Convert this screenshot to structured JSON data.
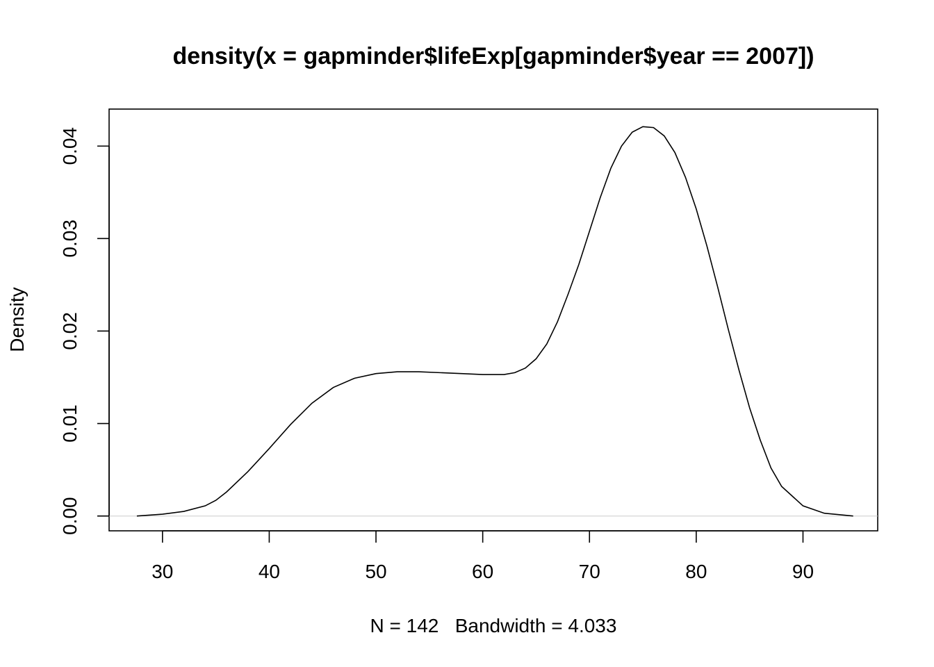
{
  "chart_data": {
    "type": "line",
    "title": "density(x = gapminder$lifeExp[gapminder$year == 2007])",
    "xlabel": "N = 142   Bandwidth = 4.033",
    "ylabel": "Density",
    "xlim": [
      25,
      97
    ],
    "ylim": [
      -0.0016,
      0.044
    ],
    "x_ticks": [
      30,
      40,
      50,
      60,
      70,
      80,
      90
    ],
    "y_ticks": [
      0.0,
      0.01,
      0.02,
      0.03,
      0.04
    ],
    "x_tick_labels": [
      "30",
      "40",
      "50",
      "60",
      "70",
      "80",
      "90"
    ],
    "y_tick_labels": [
      "0.00",
      "0.01",
      "0.02",
      "0.03",
      "0.04"
    ],
    "grid": false,
    "baseline": 0,
    "series": [
      {
        "x": [
          27.6,
          30,
          32,
          34,
          35,
          36,
          38,
          40,
          42,
          44,
          46,
          48,
          50,
          52,
          54,
          56,
          58,
          60,
          62,
          63,
          64,
          65,
          66,
          67,
          68,
          69,
          70,
          71,
          72,
          73,
          74,
          75,
          76,
          77,
          78,
          79,
          80,
          81,
          82,
          83,
          84,
          85,
          86,
          87,
          88,
          90,
          92,
          94.7
        ],
        "y": [
          0.0,
          0.0002,
          0.0005,
          0.0011,
          0.0017,
          0.0026,
          0.0048,
          0.0073,
          0.0099,
          0.0122,
          0.0139,
          0.0149,
          0.0154,
          0.0156,
          0.0156,
          0.0155,
          0.0154,
          0.0153,
          0.0153,
          0.0155,
          0.016,
          0.017,
          0.0186,
          0.021,
          0.024,
          0.0272,
          0.0308,
          0.0344,
          0.0376,
          0.04,
          0.0415,
          0.0421,
          0.042,
          0.0411,
          0.0393,
          0.0366,
          0.0332,
          0.0292,
          0.0248,
          0.0202,
          0.0158,
          0.0117,
          0.0082,
          0.0052,
          0.0032,
          0.0011,
          0.0003,
          0.0
        ]
      }
    ]
  }
}
